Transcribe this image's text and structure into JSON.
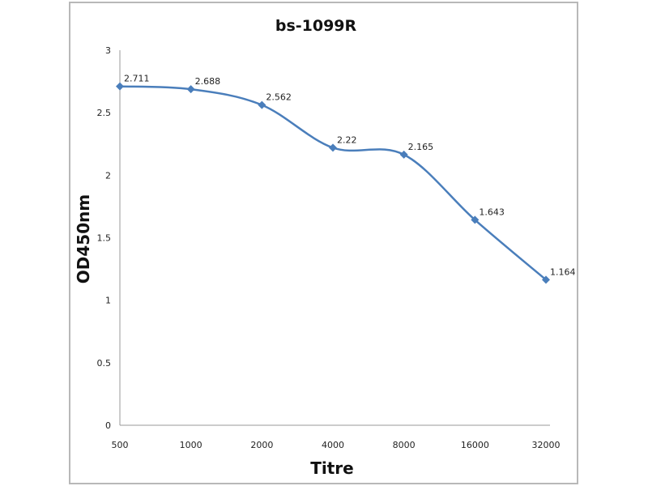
{
  "chart_data": {
    "type": "line",
    "title": "bs-1099R",
    "xlabel": "Titre",
    "ylabel": "OD450nm",
    "categories": [
      "500",
      "1000",
      "2000",
      "4000",
      "8000",
      "16000",
      "32000"
    ],
    "series": [
      {
        "values": [
          2.711,
          2.688,
          2.562,
          2.22,
          2.165,
          1.643,
          1.164
        ],
        "color": "#4a7ebb",
        "marker": "diamond",
        "smooth": true
      }
    ],
    "data_labels": [
      "2.711",
      "2.688",
      "2.562",
      "2.22",
      "2.165",
      "1.643",
      "1.164"
    ],
    "ylim": [
      0,
      3
    ],
    "yticks": [
      "0",
      "0.5",
      "1",
      "1.5",
      "2",
      "2.5",
      "3"
    ],
    "grid": false,
    "legend": "none"
  }
}
